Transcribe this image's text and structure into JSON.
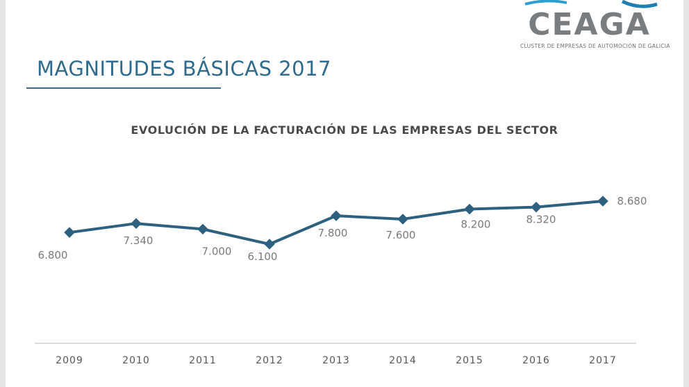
{
  "page": {
    "title": "MAGNITUDES BÁSICAS 2017"
  },
  "logo": {
    "name": "CEAGA",
    "tagline": "CLUSTER DE EMPRESAS DE AUTOMOCIÓN DE GALICIA"
  },
  "colors": {
    "line": "#2d617f",
    "title": "#2f6b8c",
    "axis": "#d0d0d0"
  },
  "chart_data": {
    "type": "line",
    "title": "EVOLUCIÓN DE LA FACTURACIÓN DE LAS EMPRESAS DEL SECTOR",
    "xlabel": "",
    "ylabel": "",
    "categories": [
      "2009",
      "2010",
      "2011",
      "2012",
      "2013",
      "2014",
      "2015",
      "2016",
      "2017"
    ],
    "values": [
      6800,
      7340,
      7000,
      6100,
      7800,
      7600,
      8200,
      8320,
      8680
    ],
    "labels": [
      "6.800",
      "7.340",
      "7.000",
      "6.100",
      "7.800",
      "7.600",
      "8.200",
      "8.320",
      "8.680"
    ],
    "grid": false,
    "legend": "none"
  }
}
